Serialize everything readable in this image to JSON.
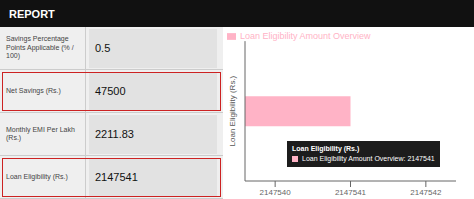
{
  "chart_data": [
    {
      "type": "table",
      "title": "REPORT",
      "categories": [
        "Savings Percentage\nPoints Applicable (% /\n100)",
        "Net Savings (Rs.)",
        "Monthly EMI Per Lakh\n(Rs.)",
        "Loan Eligibility (Rs.)"
      ],
      "values": [
        0.5,
        47500,
        2211.83,
        2147541
      ],
      "colors": [
        null,
        "#cc2222",
        null,
        "#cc2222"
      ]
    },
    {
      "type": "bar",
      "orientation": "horizontal",
      "categories": [
        null
      ],
      "series": [
        {
          "name": "Loan Eligibility Amount Overview",
          "color": "#ffb3c6",
          "values": [
            2147541
          ]
        }
      ],
      "xlim": [
        2147539.6,
        2147542.4
      ],
      "xticks": [
        2147540,
        2147541,
        2147542
      ],
      "ylabel": "Loan Eligibility (Rs.)",
      "legend": "upper left",
      "grid": false,
      "tick_labels": "x",
      "annotations": [
        "Loan Eligibility (Rs.)",
        "Loan Eligibility Amount Overview: 2147541"
      ]
    }
  ]
}
